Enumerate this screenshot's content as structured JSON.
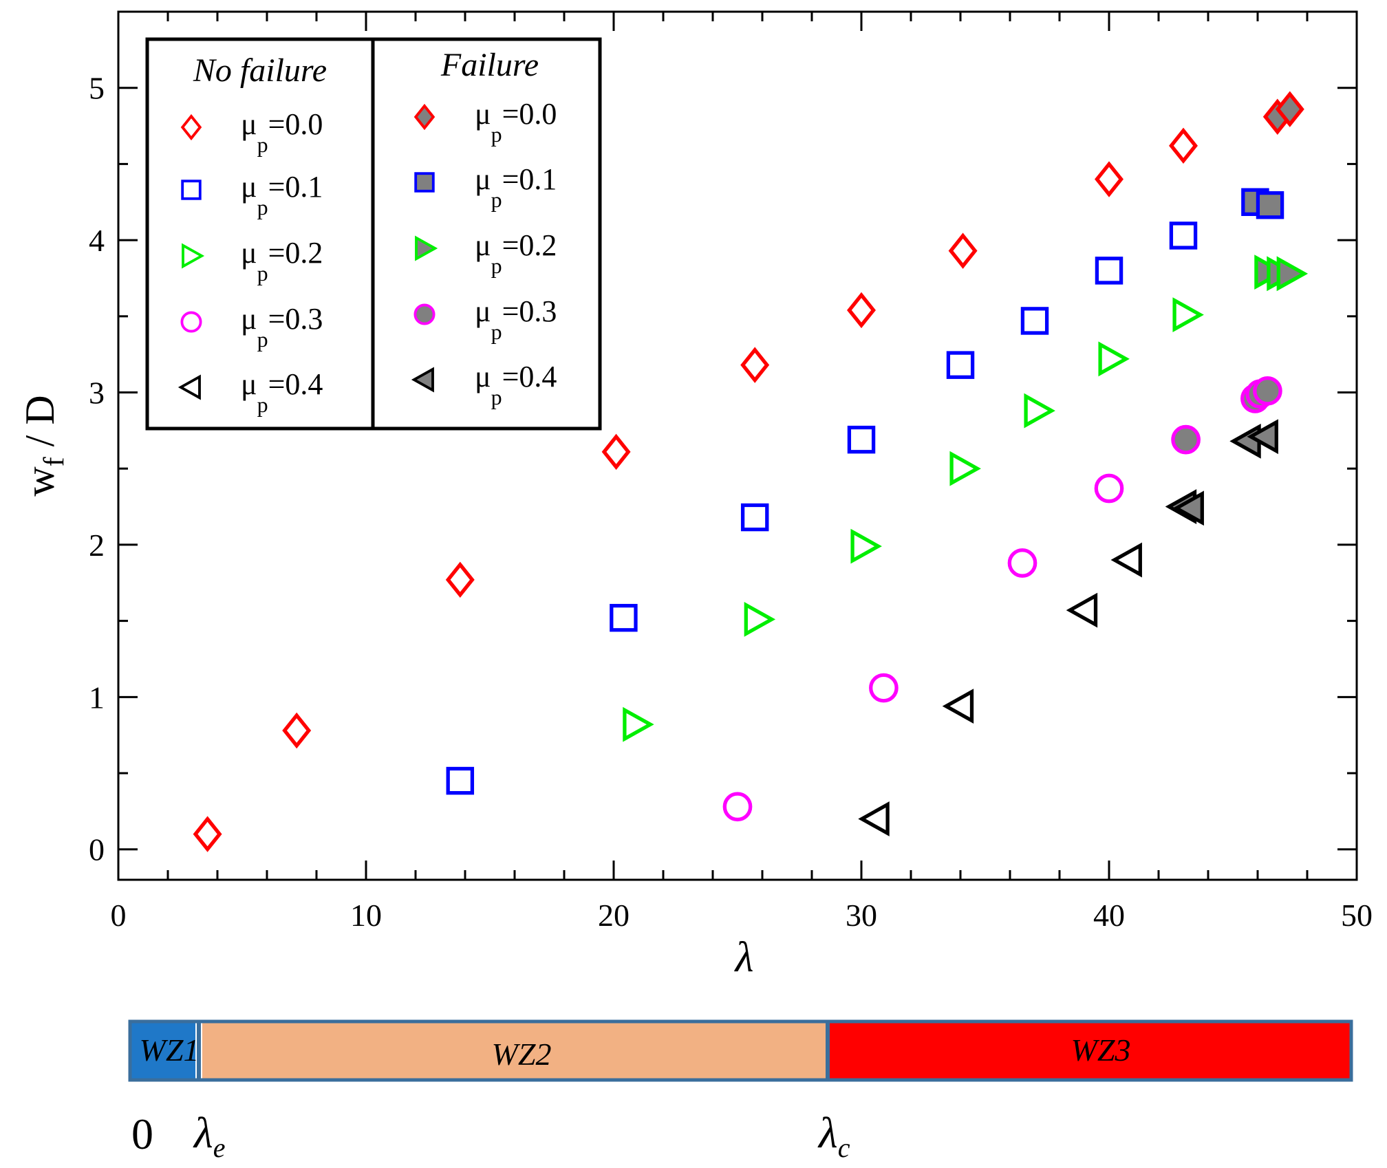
{
  "chart_data": {
    "type": "scatter",
    "xlabel": "λ",
    "ylabel_main": "w",
    "ylabel_sub": "f",
    "ylabel_rest": " / D",
    "xlim": [
      0,
      50
    ],
    "ylim": [
      -0.2,
      5.5
    ],
    "x_ticks": [
      0,
      10,
      20,
      30,
      40,
      50
    ],
    "y_ticks": [
      0,
      1,
      2,
      3,
      4,
      5
    ],
    "legend": {
      "position": "top-left",
      "no_failure_title": "No failure",
      "failure_title": "Failure"
    },
    "series": [
      {
        "name": "μp=0.0",
        "mu": "0.0",
        "marker": "diamond",
        "color": "#ff0000",
        "nofail": [
          [
            3.6,
            0.1
          ],
          [
            7.2,
            0.78
          ],
          [
            13.8,
            1.77
          ],
          [
            20.1,
            2.61
          ],
          [
            25.7,
            3.18
          ],
          [
            30.0,
            3.54
          ],
          [
            34.1,
            3.93
          ],
          [
            40.0,
            4.4
          ],
          [
            43.0,
            4.62
          ]
        ],
        "fail": [
          [
            46.8,
            4.81
          ],
          [
            47.3,
            4.86
          ]
        ]
      },
      {
        "name": "μp=0.1",
        "mu": "0.1",
        "marker": "square",
        "color": "#0000ff",
        "nofail": [
          [
            13.8,
            0.45
          ],
          [
            20.4,
            1.52
          ],
          [
            25.7,
            2.18
          ],
          [
            30.0,
            2.69
          ],
          [
            34.0,
            3.18
          ],
          [
            37.0,
            3.47
          ],
          [
            40.0,
            3.8
          ],
          [
            43.0,
            4.03
          ]
        ],
        "fail": [
          [
            45.9,
            4.25
          ],
          [
            46.5,
            4.23
          ]
        ]
      },
      {
        "name": "μp=0.2",
        "mu": "0.2",
        "marker": "triangle-right",
        "color": "#00ee00",
        "nofail": [
          [
            20.9,
            0.82
          ],
          [
            25.8,
            1.51
          ],
          [
            30.1,
            1.99
          ],
          [
            34.1,
            2.5
          ],
          [
            37.1,
            2.88
          ],
          [
            40.1,
            3.22
          ],
          [
            43.1,
            3.51
          ]
        ],
        "fail": [
          [
            46.4,
            3.79
          ],
          [
            46.9,
            3.78
          ],
          [
            47.3,
            3.78
          ]
        ]
      },
      {
        "name": "μp=0.3",
        "mu": "0.3",
        "marker": "circle",
        "color": "#ff00ff",
        "nofail": [
          [
            25.0,
            0.28
          ],
          [
            30.9,
            1.06
          ],
          [
            36.5,
            1.88
          ],
          [
            40.0,
            2.37
          ]
        ],
        "fail": [
          [
            43.1,
            2.69
          ],
          [
            45.9,
            2.96
          ],
          [
            46.1,
            2.99
          ],
          [
            46.4,
            3.01
          ]
        ]
      },
      {
        "name": "μp=0.4",
        "mu": "0.4",
        "marker": "triangle-left",
        "color": "#000000",
        "nofail": [
          [
            30.6,
            0.2
          ],
          [
            34.0,
            0.94
          ],
          [
            39.0,
            1.57
          ],
          [
            40.8,
            1.9
          ]
        ],
        "fail": [
          [
            43.0,
            2.25
          ],
          [
            43.3,
            2.24
          ],
          [
            45.6,
            2.68
          ],
          [
            46.3,
            2.71
          ]
        ]
      }
    ]
  },
  "zones": {
    "segments": [
      {
        "label": "WZ1",
        "color": "#1f78c8"
      },
      {
        "label": "WZ2",
        "color": "#f2b183"
      },
      {
        "label": "WZ3",
        "color": "#ff0000"
      }
    ],
    "border_color": "#3a6e9c",
    "boundary_zero": "0",
    "lambda_e": "λ",
    "lambda_e_sub": "e",
    "lambda_c": "λ",
    "lambda_c_sub": "c"
  }
}
